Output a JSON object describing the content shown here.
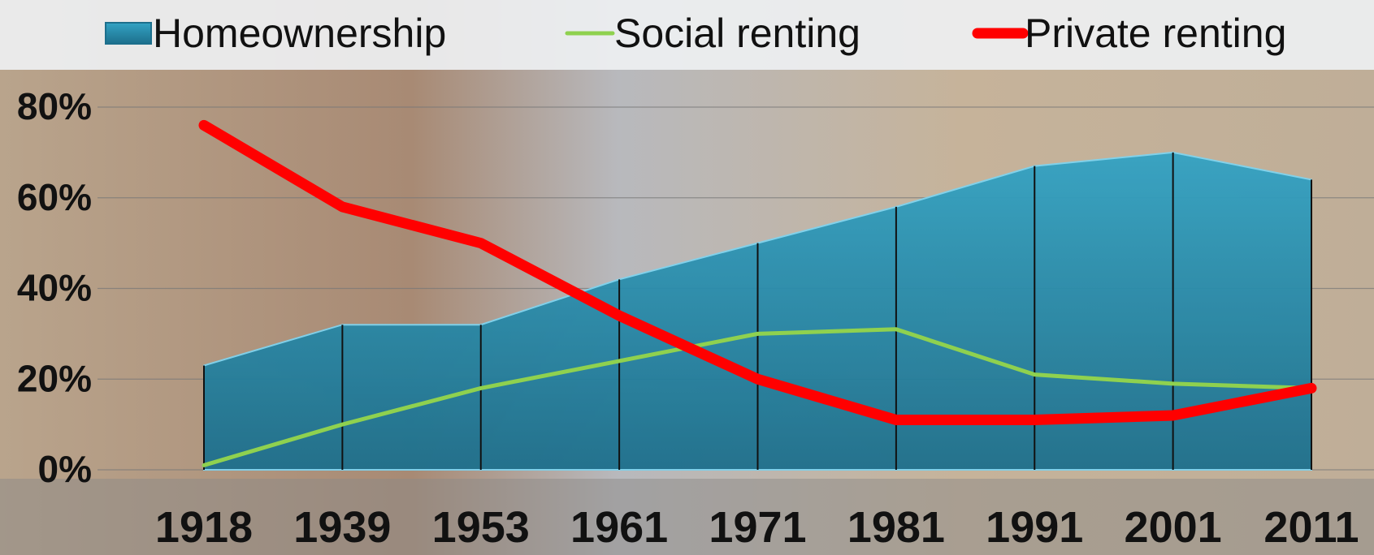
{
  "chart_data": {
    "type": "area-line",
    "categories": [
      "1918",
      "1939",
      "1953",
      "1961",
      "1971",
      "1981",
      "1991",
      "2001",
      "2011"
    ],
    "series": [
      {
        "name": "Homeownership",
        "color": "#2e9bbd",
        "kind": "area",
        "values": [
          23,
          32,
          32,
          42,
          50,
          58,
          67,
          70,
          64
        ]
      },
      {
        "name": "Social renting",
        "color": "#8fd14f",
        "kind": "line",
        "values": [
          1,
          10,
          18,
          24,
          30,
          31,
          21,
          19,
          18
        ]
      },
      {
        "name": "Private renting",
        "color": "#ff0000",
        "kind": "line",
        "values": [
          76,
          58,
          50,
          34,
          20,
          11,
          11,
          12,
          18
        ]
      }
    ],
    "ylim": [
      0,
      80
    ],
    "yticks": [
      {
        "value": 0,
        "label": "0%"
      },
      {
        "value": 20,
        "label": "20%"
      },
      {
        "value": 40,
        "label": "40%"
      },
      {
        "value": 60,
        "label": "60%"
      },
      {
        "value": 80,
        "label": "80%"
      }
    ],
    "grid": true,
    "legend": "top"
  }
}
